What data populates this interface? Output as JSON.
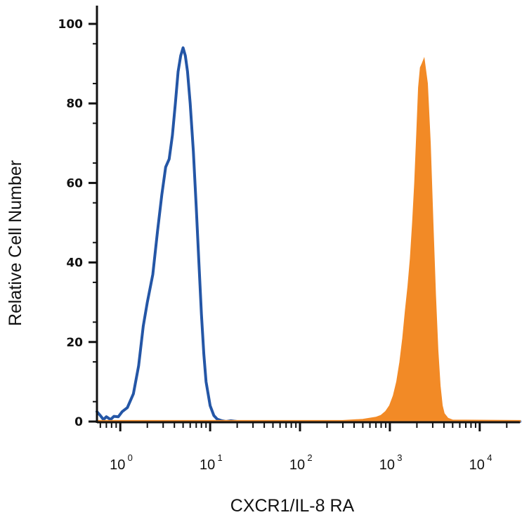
{
  "chart_data": {
    "type": "area",
    "xlabel": "CXCR1/IL-8 RA",
    "ylabel": "Relative Cell Number",
    "x_scale": "log",
    "xlim": [
      0.55,
      28000
    ],
    "ylim": [
      0,
      100
    ],
    "yticks": [
      {
        "value": 0,
        "label": "0"
      },
      {
        "value": 20,
        "label": "20"
      },
      {
        "value": 40,
        "label": "40"
      },
      {
        "value": 60,
        "label": "60"
      },
      {
        "value": 80,
        "label": "80"
      },
      {
        "value": 100,
        "label": "100"
      }
    ],
    "xticks": [
      {
        "value": 1,
        "base": "10",
        "exp": "0"
      },
      {
        "value": 10,
        "base": "10",
        "exp": "1"
      },
      {
        "value": 100,
        "base": "10",
        "exp": "2"
      },
      {
        "value": 1000,
        "base": "10",
        "exp": "3"
      },
      {
        "value": 10000,
        "base": "10",
        "exp": "4"
      }
    ],
    "grid": false,
    "series": [
      {
        "style": "line",
        "color": "#2456A6",
        "x": [
          0.55,
          0.6,
          0.65,
          0.7,
          0.78,
          0.85,
          0.95,
          1.05,
          1.2,
          1.4,
          1.6,
          1.8,
          2.0,
          2.3,
          2.6,
          2.9,
          3.2,
          3.5,
          3.8,
          4.1,
          4.4,
          4.7,
          5.0,
          5.3,
          5.6,
          6.0,
          6.5,
          7.0,
          7.5,
          8.0,
          8.5,
          9.0,
          10.0,
          11.0,
          12.0,
          13.5,
          15.0,
          17.0,
          20.0,
          28000
        ],
        "y": [
          2.5,
          1.5,
          0.5,
          1.2,
          0.5,
          1.3,
          1.2,
          2.5,
          3.5,
          7.0,
          14.0,
          24.0,
          30.0,
          37.0,
          48.0,
          57.0,
          64.0,
          66.0,
          72.0,
          80.0,
          88.0,
          92.0,
          94.0,
          92.0,
          88.0,
          80.0,
          68.0,
          54.0,
          40.0,
          27.0,
          17.0,
          10.0,
          4.0,
          1.5,
          0.6,
          0.2,
          0.0,
          0.2,
          0.0,
          0.0
        ]
      },
      {
        "style": "filled",
        "color": "#F28A26",
        "x": [
          0.55,
          300,
          500,
          700,
          800,
          900,
          1000,
          1100,
          1200,
          1300,
          1400,
          1500,
          1600,
          1700,
          1800,
          1900,
          2000,
          2100,
          2200,
          2300,
          2400,
          2600,
          2800,
          3000,
          3200,
          3400,
          3600,
          3800,
          4000,
          4400,
          5000,
          28000
        ],
        "y": [
          0.2,
          0.2,
          0.5,
          1.0,
          1.5,
          2.5,
          4.0,
          6.5,
          10.0,
          15.0,
          21.0,
          28.0,
          34.0,
          41.0,
          50.0,
          60.0,
          72.0,
          84.0,
          89.0,
          90.0,
          91.0,
          85.0,
          70.0,
          50.0,
          32.0,
          18.0,
          9.0,
          4.0,
          2.0,
          0.8,
          0.3,
          0.2
        ]
      }
    ]
  }
}
